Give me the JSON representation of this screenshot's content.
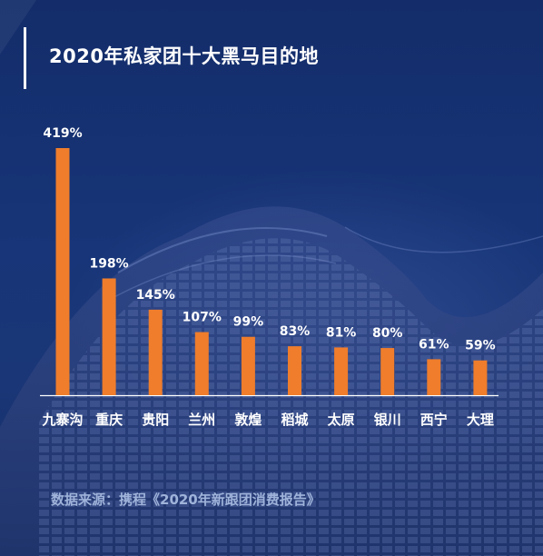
{
  "title": "2020年私家团十大黑马目的地",
  "source": "数据来源：携程《2020年新跟团消费报告》",
  "colors": {
    "bar": "#ef7d2c",
    "text": "#ffffff",
    "source_text": "#9fb3da",
    "background": "#14306e"
  },
  "chart_data": {
    "type": "bar",
    "categories": [
      "九寨沟",
      "重庆",
      "贵阳",
      "兰州",
      "敦煌",
      "稻城",
      "太原",
      "银川",
      "西宁",
      "大理"
    ],
    "values": [
      419,
      198,
      145,
      107,
      99,
      83,
      81,
      80,
      61,
      59
    ],
    "value_labels": [
      "419%",
      "198%",
      "145%",
      "107%",
      "99%",
      "83%",
      "81%",
      "80%",
      "61%",
      "59%"
    ],
    "ylim": [
      0,
      419
    ],
    "grid": false,
    "legend": "none"
  }
}
